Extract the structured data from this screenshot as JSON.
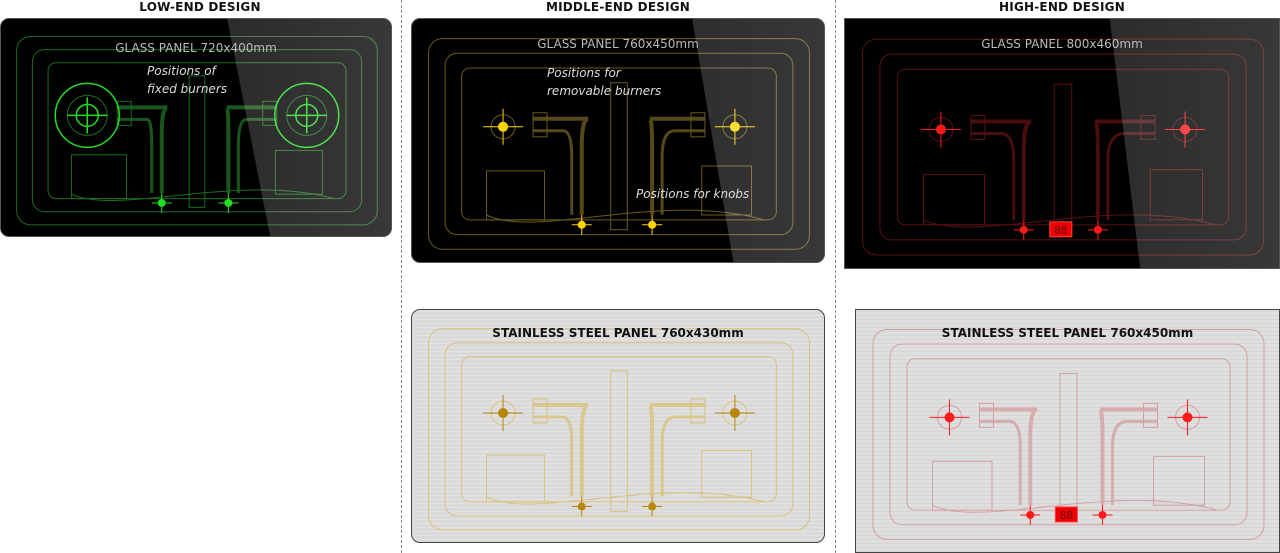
{
  "headers": {
    "low": "LOW-END DESIGN",
    "middle": "MIDDLE-END DESIGN",
    "high": "HIGH-END DESIGN"
  },
  "panels": {
    "low_glass": {
      "title": "GLASS PANEL 720x400mm",
      "accent": "#22dd22",
      "line": "#1f6b1f",
      "note_burners": [
        "Positions of",
        "fixed burners"
      ]
    },
    "mid_glass": {
      "title": "GLASS PANEL 760x450mm",
      "accent": "#ffd400",
      "line": "#6b5a1e",
      "note_burners": [
        "Positions for",
        "removable burners"
      ],
      "note_knobs": "Positions for knobs"
    },
    "high_glass": {
      "title": "GLASS PANEL 800x460mm",
      "accent": "#ff1a1a",
      "line": "#5a1010",
      "display": "88"
    },
    "mid_steel": {
      "title": "STAINLESS STEEL PANEL 760x430mm",
      "accent": "#b8860b",
      "line": "#d9c27a"
    },
    "high_steel": {
      "title": "STAINLESS STEEL PANEL 760x450mm",
      "accent": "#ff1a1a",
      "line": "#d6a0a0",
      "display": "88"
    }
  }
}
